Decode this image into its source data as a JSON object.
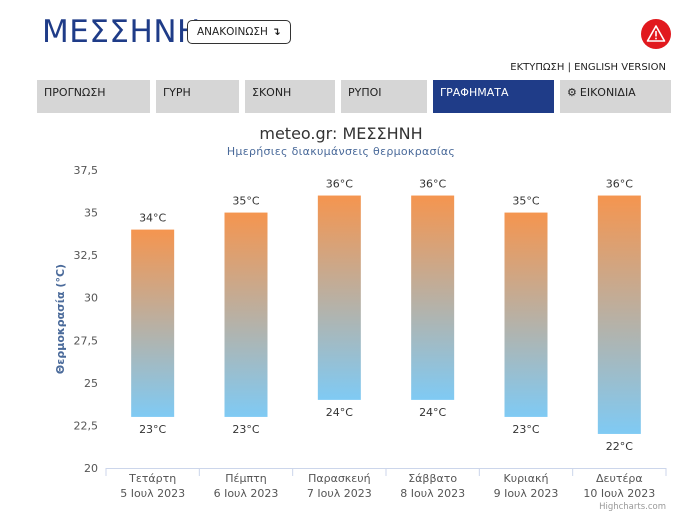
{
  "header": {
    "title": "ΜΕΣΣΗΝΗ",
    "announce_label": "ΑΝΑΚΟΙΝΩΣΗ",
    "announce_arrow": "↴",
    "alert_icon": "warning-triangle-icon",
    "alert_color": "#e1191e",
    "links": "ΕΚΤΥΠΩΣΗ | ENGLISH VERSION"
  },
  "tabs": [
    {
      "label": "ΠΡΟΓΝΩΣΗ",
      "active": false
    },
    {
      "label": "ΓΥΡΗ",
      "active": false
    },
    {
      "label": "ΣΚΟΝΗ",
      "active": false
    },
    {
      "label": "ΡΥΠΟΙ",
      "active": false
    },
    {
      "label": "ΓΡΑΦΗΜΑΤΑ",
      "active": true
    },
    {
      "label": "ΕΙΚΟΝΙΔΙΑ",
      "active": false,
      "icon": "gear-icon"
    }
  ],
  "chart": {
    "title": "meteo.gr: ΜΕΣΣΗΝΗ",
    "subtitle": "Ημερήσιες διακυμάνσεις θερμοκρασίας",
    "credits": "Highcharts.com"
  },
  "colors": {
    "brand": "#1f3c88",
    "bar_top": "#f5954f",
    "bar_bottom": "#7fcaf4"
  },
  "chart_data": {
    "type": "bar",
    "title": "meteo.gr: ΜΕΣΣΗΝΗ",
    "subtitle": "Ημερήσιες διακυμάνσεις θερμοκρασίας",
    "ylabel": "Θερμοκρασία (°C)",
    "xlabel": "",
    "ylim": [
      20,
      37.5
    ],
    "yticks": [
      "20",
      "22,5",
      "25",
      "27,5",
      "30",
      "32,5",
      "35",
      "37,5"
    ],
    "ytick_values": [
      20,
      22.5,
      25,
      27.5,
      30,
      32.5,
      35,
      37.5
    ],
    "categories": [
      [
        "Τετάρτη",
        "5 Ιουλ 2023"
      ],
      [
        "Πέμπτη",
        "6 Ιουλ 2023"
      ],
      [
        "Παρασκευή",
        "7 Ιουλ 2023"
      ],
      [
        "Σάββατο",
        "8 Ιουλ 2023"
      ],
      [
        "Κυριακή",
        "9 Ιουλ 2023"
      ],
      [
        "Δευτέρα",
        "10 Ιουλ 2023"
      ]
    ],
    "series": [
      {
        "low": 23,
        "high": 34,
        "low_label": "23°C",
        "high_label": "34°C"
      },
      {
        "low": 23,
        "high": 35,
        "low_label": "23°C",
        "high_label": "35°C"
      },
      {
        "low": 24,
        "high": 36,
        "low_label": "24°C",
        "high_label": "36°C"
      },
      {
        "low": 24,
        "high": 36,
        "low_label": "24°C",
        "high_label": "36°C"
      },
      {
        "low": 23,
        "high": 35,
        "low_label": "23°C",
        "high_label": "35°C"
      },
      {
        "low": 22,
        "high": 36,
        "low_label": "22°C",
        "high_label": "36°C"
      }
    ],
    "grid": false,
    "legend": "none"
  }
}
